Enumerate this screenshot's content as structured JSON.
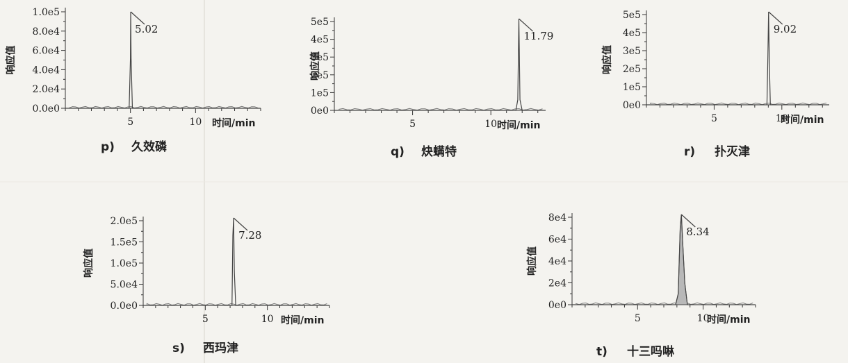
{
  "chart_data": [
    {
      "id": "p",
      "type": "line",
      "caption_letter": "p)",
      "caption_name": "久效磷",
      "xlabel": "时间/min",
      "ylabel": "响应值",
      "xlim": [
        0,
        15
      ],
      "ylim": [
        0,
        100000
      ],
      "xticks": [
        5,
        10
      ],
      "xtick_labels": [
        "5",
        "10"
      ],
      "yticks": [
        0,
        20000,
        40000,
        60000,
        80000,
        100000
      ],
      "ytick_labels": [
        "0.0e0",
        "2.0e4",
        "4.0e4",
        "6.0e4",
        "8.0e4",
        "1.0e5"
      ],
      "peak_label": "5.02",
      "x": [
        0,
        4.9,
        5.0,
        5.02,
        5.05,
        5.15,
        15
      ],
      "y": [
        0,
        0,
        52000,
        100000,
        52000,
        0,
        0
      ]
    },
    {
      "id": "q",
      "type": "line",
      "caption_letter": "q)",
      "caption_name": "炔螨特",
      "xlabel": "时间/min",
      "ylabel": "响应值",
      "xlim": [
        0,
        13.5
      ],
      "ylim": [
        0,
        500000
      ],
      "xticks": [
        5,
        10
      ],
      "xtick_labels": [
        "5",
        "10"
      ],
      "yticks": [
        0,
        100000,
        200000,
        300000,
        400000,
        500000
      ],
      "ytick_labels": [
        "0e0",
        "1e5",
        "2e5",
        "3e5",
        "4e5",
        "5e5"
      ],
      "peak_label": "11.79",
      "x": [
        0,
        11.6,
        11.72,
        11.79,
        11.86,
        12.0,
        13.5
      ],
      "y": [
        0,
        0,
        60000,
        530000,
        60000,
        0,
        0
      ]
    },
    {
      "id": "r",
      "type": "line",
      "caption_letter": "r)",
      "caption_name": "扑灭津",
      "xlabel": "时间/min",
      "ylabel": "响应值",
      "xlim": [
        0,
        13.5
      ],
      "ylim": [
        0,
        500000
      ],
      "xticks": [
        5,
        10
      ],
      "xtick_labels": [
        "5",
        "10"
      ],
      "yticks": [
        0,
        100000,
        200000,
        300000,
        400000,
        500000
      ],
      "ytick_labels": [
        "0e0",
        "1e5",
        "2e5",
        "3e5",
        "4e5",
        "5e5"
      ],
      "peak_label": "9.02",
      "x": [
        0,
        8.9,
        8.97,
        9.02,
        9.07,
        9.15,
        13.5
      ],
      "y": [
        0,
        0,
        270000,
        530000,
        270000,
        0,
        0
      ]
    },
    {
      "id": "s",
      "type": "line",
      "caption_letter": "s)",
      "caption_name": "西玛津",
      "xlabel": "时间/min",
      "ylabel": "响应值",
      "xlim": [
        0,
        15
      ],
      "ylim": [
        0,
        200000
      ],
      "xticks": [
        5,
        10
      ],
      "xtick_labels": [
        "5",
        "10"
      ],
      "yticks": [
        0,
        50000,
        100000,
        150000,
        200000
      ],
      "ytick_labels": [
        "0.0e0",
        "5.0e4",
        "1.0e5",
        "1.5e5",
        "2.0e5"
      ],
      "peak_label": "7.28",
      "x": [
        0,
        7.15,
        7.22,
        7.28,
        7.34,
        7.45,
        15
      ],
      "y": [
        0,
        0,
        165000,
        255000,
        80000,
        0,
        0
      ]
    },
    {
      "id": "t",
      "type": "line",
      "caption_letter": "t)",
      "caption_name": "十三吗啉",
      "xlabel": "时间/min",
      "ylabel": "响应值",
      "xlim": [
        0,
        14
      ],
      "ylim": [
        0,
        80000
      ],
      "xticks": [
        5,
        10
      ],
      "xtick_labels": [
        "5",
        "10"
      ],
      "yticks": [
        0,
        20000,
        40000,
        60000,
        80000
      ],
      "ytick_labels": [
        "0e0",
        "2e4",
        "4e4",
        "6e4",
        "8e4"
      ],
      "peak_label": "8.34",
      "x": [
        0,
        7.9,
        8.1,
        8.25,
        8.34,
        8.45,
        8.6,
        8.8,
        14
      ],
      "y": [
        0,
        0,
        10000,
        70000,
        90000,
        55000,
        20000,
        0,
        0
      ]
    }
  ]
}
